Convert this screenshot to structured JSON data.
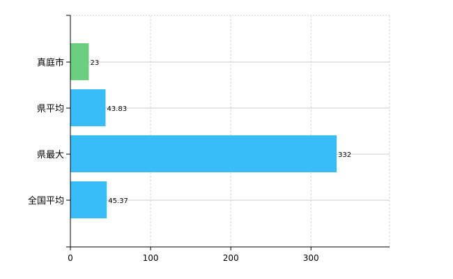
{
  "chart_data": {
    "type": "bar",
    "orientation": "horizontal",
    "categories": [
      "真庭市",
      "県平均",
      "県最大",
      "全国平均"
    ],
    "values": [
      23,
      43.83,
      332,
      45.37
    ],
    "data_labels": [
      "23",
      "43.83",
      "332",
      "45.37"
    ],
    "colors": [
      "#6ccf80",
      "#38bdf8",
      "#38bdf8",
      "#38bdf8"
    ],
    "xlim": [
      0,
      398
    ],
    "xticks": [
      0,
      100,
      200,
      300
    ],
    "xtick_labels": [
      "0",
      "100",
      "200",
      "300"
    ],
    "grid": true,
    "title": "",
    "xlabel": "",
    "ylabel": ""
  }
}
